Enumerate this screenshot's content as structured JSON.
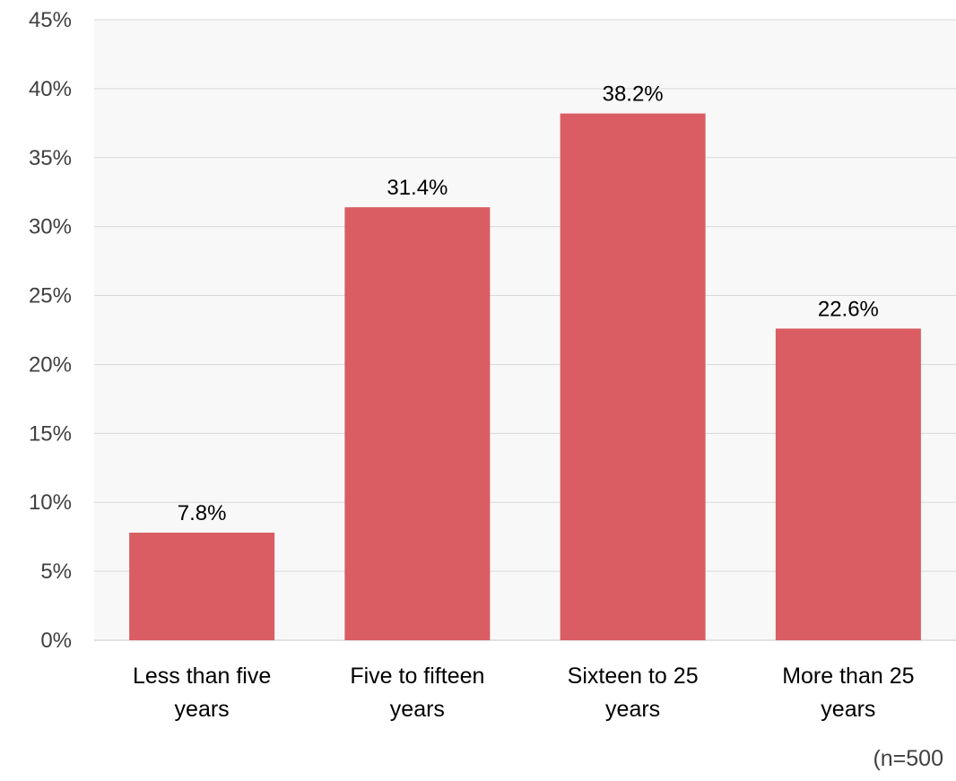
{
  "chart_data": {
    "type": "bar",
    "categories": [
      [
        "Less than five",
        "years"
      ],
      [
        "Five to fifteen",
        "years"
      ],
      [
        "Sixteen to 25",
        "years"
      ],
      [
        "More than 25",
        "years"
      ]
    ],
    "values": [
      7.8,
      31.4,
      38.2,
      22.6
    ],
    "data_labels": [
      "7.8%",
      "31.4%",
      "38.2%",
      "22.6%"
    ],
    "ylim": [
      0,
      45
    ],
    "yticks": [
      "0%",
      "5%",
      "10%",
      "15%",
      "20%",
      "25%",
      "30%",
      "35%",
      "40%",
      "45%"
    ],
    "grid": true,
    "bar_color": "#d95d63",
    "plot_background": "#f8f8f8",
    "grid_color": "#d9d9d9"
  },
  "footnote": "(n=500"
}
